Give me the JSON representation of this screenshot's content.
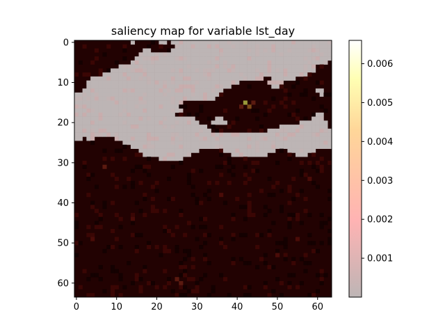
{
  "chart_data": {
    "type": "heatmap",
    "title": "saliency map for variable lst_day",
    "xlabel": "",
    "ylabel": "",
    "grid_size": [
      64,
      64
    ],
    "xlim": [
      -0.5,
      63.5
    ],
    "ylim": [
      63.5,
      -0.5
    ],
    "x_ticks": [
      0,
      10,
      20,
      30,
      40,
      50,
      60
    ],
    "y_ticks": [
      0,
      10,
      20,
      30,
      40,
      50,
      60
    ],
    "colorbar": {
      "colormap": "hot (semi-transparent over background field)",
      "vmin": 0.0,
      "vmax": 0.0066,
      "ticks": [
        0.001,
        0.002,
        0.003,
        0.004,
        0.005,
        0.006
      ],
      "tick_labels": [
        "0.001",
        "0.002",
        "0.003",
        "0.004",
        "0.005",
        "0.006"
      ]
    },
    "masked_region_color": "#bdb5b5",
    "background_value_note": "grey cells are masked",
    "mask_rows": [
      {
        "row": 0,
        "segments": [
          [
            14,
            14
          ],
          [
            21,
            22
          ],
          [
            24,
            63
          ]
        ]
      },
      {
        "row": 1,
        "segments": [
          [
            25,
            63
          ]
        ]
      },
      {
        "row": 2,
        "segments": [
          [
            17,
            18
          ],
          [
            24,
            63
          ]
        ]
      },
      {
        "row": 3,
        "segments": [
          [
            16,
            63
          ]
        ]
      },
      {
        "row": 4,
        "segments": [
          [
            15,
            63
          ]
        ]
      },
      {
        "row": 5,
        "segments": [
          [
            14,
            62
          ]
        ]
      },
      {
        "row": 6,
        "segments": [
          [
            11,
            59
          ]
        ]
      },
      {
        "row": 7,
        "segments": [
          [
            9,
            59
          ]
        ]
      },
      {
        "row": 8,
        "segments": [
          [
            7,
            57
          ]
        ]
      },
      {
        "row": 9,
        "segments": [
          [
            4,
            46
          ],
          [
            49,
            54
          ]
        ]
      },
      {
        "row": 10,
        "segments": [
          [
            3,
            40
          ],
          [
            48,
            51
          ]
        ]
      },
      {
        "row": 11,
        "segments": [
          [
            3,
            38
          ],
          [
            49,
            50
          ]
        ]
      },
      {
        "row": 12,
        "segments": [
          [
            2,
            36
          ],
          [
            60,
            61
          ]
        ]
      },
      {
        "row": 13,
        "segments": [
          [
            0,
            35
          ],
          [
            61,
            61
          ]
        ]
      },
      {
        "row": 14,
        "segments": [
          [
            0,
            34
          ]
        ]
      },
      {
        "row": 15,
        "segments": [
          [
            0,
            26
          ]
        ]
      },
      {
        "row": 16,
        "segments": [
          [
            0,
            25
          ]
        ]
      },
      {
        "row": 17,
        "segments": [
          [
            0,
            26
          ]
        ]
      },
      {
        "row": 18,
        "segments": [
          [
            0,
            24
          ],
          [
            60,
            61
          ]
        ]
      },
      {
        "row": 19,
        "segments": [
          [
            0,
            29
          ],
          [
            35,
            36
          ],
          [
            59,
            61
          ]
        ]
      },
      {
        "row": 20,
        "segments": [
          [
            0,
            30
          ],
          [
            34,
            37
          ],
          [
            56,
            62
          ]
        ]
      },
      {
        "row": 21,
        "segments": [
          [
            0,
            32
          ],
          [
            51,
            62
          ]
        ]
      },
      {
        "row": 22,
        "segments": [
          [
            0,
            33
          ],
          [
            48,
            63
          ]
        ]
      },
      {
        "row": 23,
        "segments": [
          [
            0,
            63
          ]
        ]
      },
      {
        "row": 24,
        "segments": [
          [
            0,
            1
          ],
          [
            3,
            4
          ],
          [
            10,
            63
          ]
        ]
      },
      {
        "row": 25,
        "segments": [
          [
            12,
            63
          ]
        ]
      },
      {
        "row": 26,
        "segments": [
          [
            14,
            63
          ]
        ]
      },
      {
        "row": 27,
        "segments": [
          [
            16,
            30
          ],
          [
            37,
            49
          ],
          [
            53,
            59
          ]
        ]
      },
      {
        "row": 28,
        "segments": [
          [
            17,
            28
          ],
          [
            39,
            47
          ],
          [
            55,
            57
          ]
        ]
      },
      {
        "row": 29,
        "segments": [
          [
            21,
            26
          ]
        ]
      }
    ],
    "hotspots": [
      {
        "x": 42,
        "y": 15,
        "value": 0.0045
      },
      {
        "x": 43,
        "y": 16,
        "value": 0.0022
      },
      {
        "x": 41,
        "y": 16,
        "value": 0.0018
      },
      {
        "x": 44,
        "y": 15,
        "value": 0.0016
      },
      {
        "x": 7,
        "y": 31,
        "value": 0.0012
      },
      {
        "x": 26,
        "y": 60,
        "value": 0.0012
      },
      {
        "x": 25,
        "y": 59,
        "value": 0.001
      },
      {
        "x": 55,
        "y": 49,
        "value": 0.0009
      },
      {
        "x": 14,
        "y": 44,
        "value": 0.0008
      },
      {
        "x": 36,
        "y": 38,
        "value": 0.0008
      },
      {
        "x": 50,
        "y": 53,
        "value": 0.0007
      },
      {
        "x": 4,
        "y": 49,
        "value": 0.0007
      },
      {
        "x": 58,
        "y": 34,
        "value": 0.0007
      },
      {
        "x": 29,
        "y": 24,
        "value": 0.0006
      },
      {
        "x": 46,
        "y": 22,
        "value": 0.0006
      }
    ]
  }
}
